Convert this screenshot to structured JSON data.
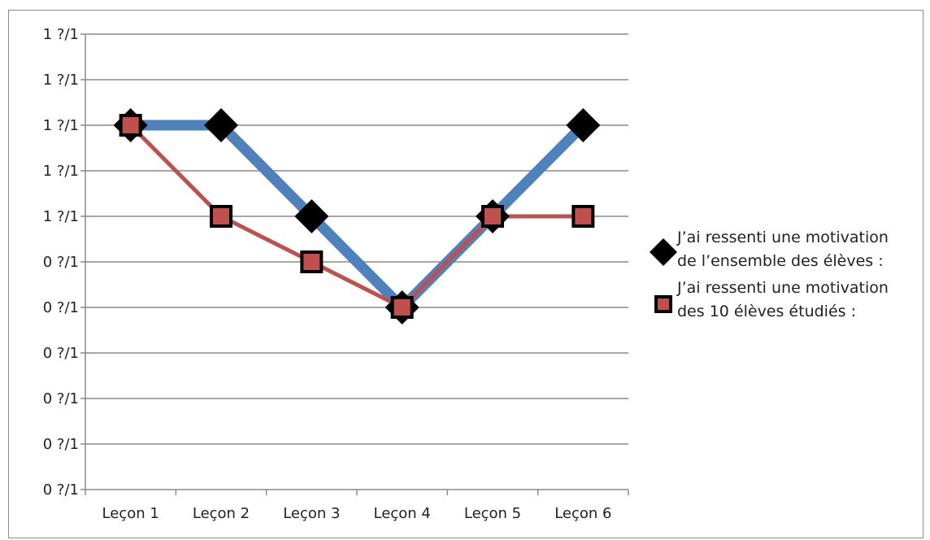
{
  "chart_data": {
    "type": "line",
    "categories": [
      "Leçon 1",
      "Leçon 2",
      "Leçon 3",
      "Leçon 4",
      "Leçon 5",
      "Leçon 6"
    ],
    "y_tick_labels": [
      "0 ?/1",
      "0 ?/1",
      "0 ?/1",
      "0 ?/1",
      "0 ?/1",
      "0 ?/1",
      "1 ?/1",
      "1 ?/1",
      "1 ?/1",
      "1 ?/1",
      "1 ?/1"
    ],
    "ylim": [
      0,
      10
    ],
    "grid": true,
    "legend_position": "right",
    "series": [
      {
        "name_lines": [
          "J’ai ressenti une motivation",
          "de l’ensemble des élèves :"
        ],
        "values": [
          8,
          8,
          6,
          4,
          6,
          8
        ],
        "line_color": "#4f81bd",
        "marker": "diamond",
        "marker_color": "#000000"
      },
      {
        "name_lines": [
          "J’ai ressenti une motivation",
          "des 10 élèves étudiés :"
        ],
        "values": [
          8,
          6,
          5,
          4,
          6,
          6
        ],
        "line_color": "#c0504d",
        "marker": "square",
        "marker_color": "#c0504d",
        "marker_border": "#000000"
      }
    ]
  }
}
